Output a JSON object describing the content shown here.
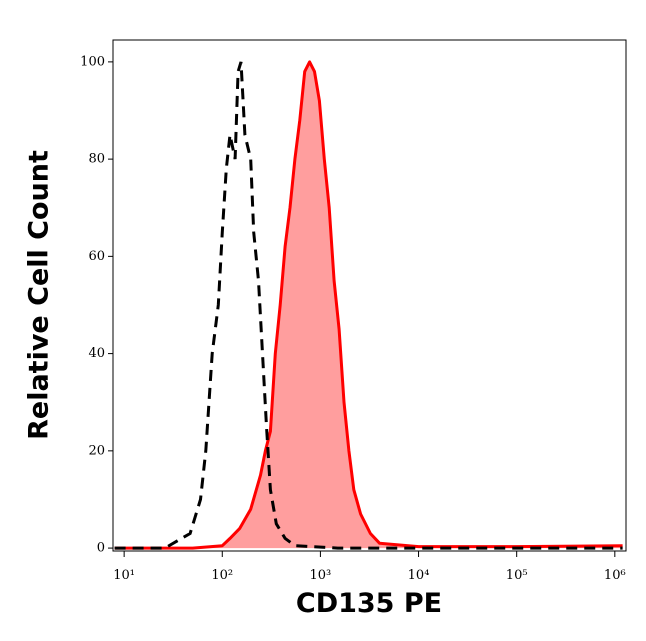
{
  "chart_data": {
    "type": "histogram-overlay",
    "x_label": "CD135 PE",
    "y_label": "Relative Cell Count",
    "xscale": "log",
    "xlim": [
      7.7,
      1300000
    ],
    "ylim": [
      -0.6,
      104.5
    ],
    "xticks": [
      {
        "value": 10,
        "label": "10¹"
      },
      {
        "value": 100,
        "label": "10²"
      },
      {
        "value": 1000,
        "label": "10³"
      },
      {
        "value": 10000,
        "label": "10⁴"
      },
      {
        "value": 100000,
        "label": "10⁵"
      },
      {
        "value": 1000000,
        "label": "10⁶"
      }
    ],
    "yticks": [
      0,
      20,
      40,
      60,
      80,
      100
    ],
    "series": [
      {
        "style": "dashed",
        "color": "#000000",
        "x": [
          8,
          26,
          47,
          60,
          68,
          79,
          91,
          100,
          110,
          120,
          135,
          145,
          155,
          170,
          195,
          209,
          234,
          257,
          282,
          309,
          355,
          437,
          550,
          800,
          1500,
          5000,
          100000,
          1200000
        ],
        "values": [
          0,
          0,
          3,
          10,
          20,
          40,
          50,
          65,
          78,
          85,
          80,
          98,
          100,
          85,
          80,
          65,
          55,
          40,
          25,
          12,
          5,
          2,
          0.5,
          0.3,
          0,
          0,
          0,
          0
        ]
      },
      {
        "style": "filled",
        "color": "#ff0000",
        "fill": "#ff9e9e",
        "x": [
          8,
          50,
          100,
          120,
          150,
          195,
          245,
          275,
          309,
          347,
          389,
          437,
          490,
          550,
          617,
          692,
          776,
          871,
          977,
          1096,
          1230,
          1380,
          1549,
          1738,
          1950,
          2188,
          2570,
          3230,
          4000,
          10000,
          100000,
          1200000
        ],
        "values": [
          0,
          0,
          0.5,
          2,
          4,
          8,
          15,
          20,
          24,
          40,
          50,
          62,
          70,
          80,
          88,
          98,
          100,
          98,
          92,
          80,
          70,
          55,
          45,
          30,
          20,
          12,
          7,
          3,
          1,
          0.3,
          0.3,
          0.5
        ]
      }
    ]
  }
}
